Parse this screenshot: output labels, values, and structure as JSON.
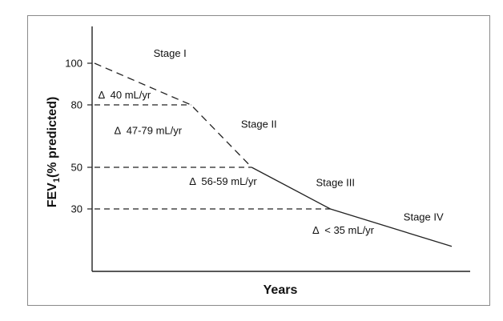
{
  "chart_data": {
    "type": "line",
    "xlabel": "Years",
    "ylabel": {
      "main": "FEV",
      "sub": "1",
      "rest": "(% predicted)"
    },
    "yticks": [
      100,
      80,
      50,
      30
    ],
    "ylim": [
      0,
      117
    ],
    "xlim": [
      0,
      100
    ],
    "series": [
      {
        "line_style": "dashed",
        "x": [
          0,
          27,
          44
        ],
        "y": [
          100,
          80,
          50
        ]
      },
      {
        "line_style": "solid",
        "x": [
          44,
          66,
          100
        ],
        "y": [
          50,
          30,
          12
        ]
      }
    ],
    "reference_lines": [
      {
        "y": 80,
        "x_end": 27
      },
      {
        "y": 50,
        "x_end": 44
      },
      {
        "y": 30,
        "x_end": 66
      }
    ],
    "stage_labels": [
      {
        "text": "Stage I",
        "x": 16.5,
        "y": 103
      },
      {
        "text": "Stage II",
        "x": 41,
        "y": 69
      },
      {
        "text": "Stage III",
        "x": 62,
        "y": 41
      },
      {
        "text": "Stage IV",
        "x": 86.5,
        "y": 24.5
      }
    ],
    "annotations": [
      {
        "text": "Δ  40 mL/yr",
        "x": 1,
        "y": 83
      },
      {
        "text": "Δ  47-79 mL/yr",
        "x": 5.5,
        "y": 66
      },
      {
        "text": "Δ  56-59 mL/yr",
        "x": 26.5,
        "y": 41.5
      },
      {
        "text": "Δ  < 35 mL/yr",
        "x": 61,
        "y": 18
      }
    ]
  }
}
